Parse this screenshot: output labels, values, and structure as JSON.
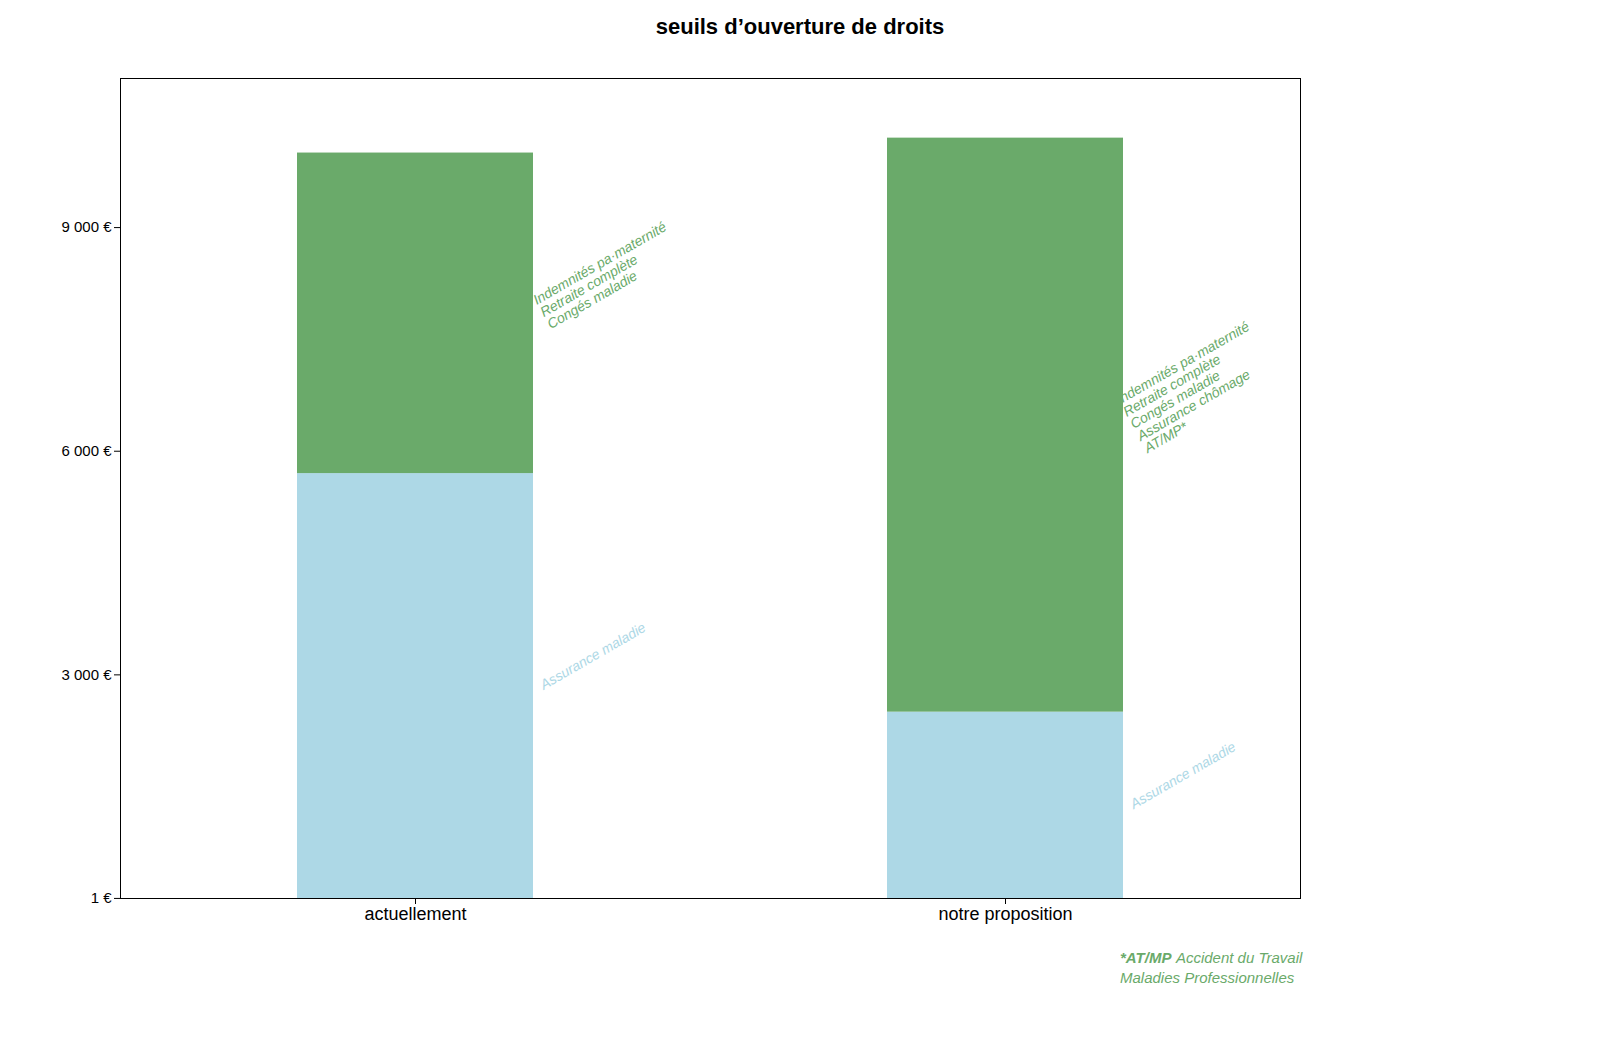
{
  "chart_data": {
    "type": "bar",
    "title": "seuils d’ouverture de droits",
    "stacked": true,
    "categories": [
      "actuellement",
      "notre proposition"
    ],
    "series": [
      {
        "color": "#add8e6",
        "values": [
          5700,
          2500
        ],
        "annotations": [
          "Assurance maladie",
          "Assurance maladie"
        ]
      },
      {
        "color": "#6aaa6a",
        "values": [
          4300,
          7700
        ],
        "annotations": [
          "Indemnités pa·maternité\nRetraite complète\nCongés maladie",
          "Indemnités pa·maternité\nRetraite complète\nCongés maladie\nAssurance chômage\nAT/MP*"
        ]
      }
    ],
    "ylim": [
      0,
      11000
    ],
    "yticks": [
      {
        "value": 1,
        "label": "1 €"
      },
      {
        "value": 3000,
        "label": "3 000 €"
      },
      {
        "value": 6000,
        "label": "6 000 €"
      },
      {
        "value": 9000,
        "label": "9 000 €"
      }
    ],
    "grid": false,
    "footnote_bold": "*AT/MP",
    "footnote": "Accident du Travail\nMaladies Professionnelles",
    "footnote_color": "#6aaa6a"
  }
}
